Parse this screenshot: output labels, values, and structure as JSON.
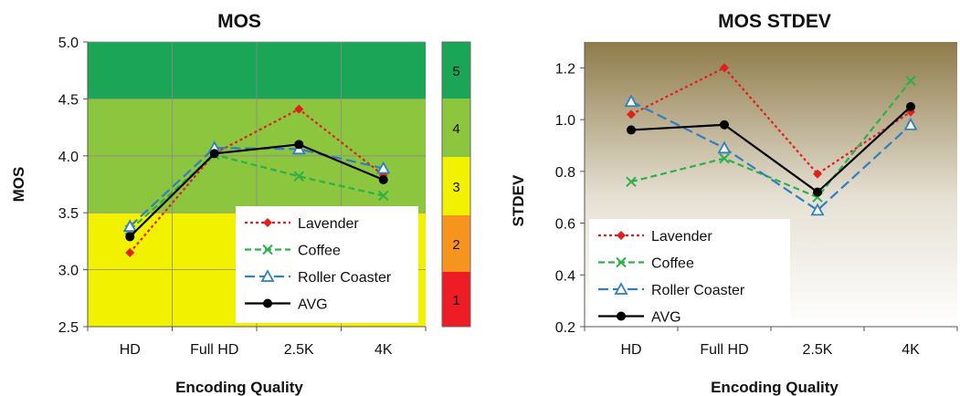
{
  "chart_data": [
    {
      "type": "line",
      "title": "MOS",
      "xlabel": "Encoding Quality",
      "ylabel": "MOS",
      "categories": [
        "HD",
        "Full HD",
        "2.5K",
        "4K"
      ],
      "ylim": [
        2.5,
        5.0
      ],
      "yticks": [
        "2.5",
        "3.0",
        "3.5",
        "4.0",
        "4.5",
        "5.0"
      ],
      "grid": true,
      "legend_position": "bottom-right",
      "background_bands": [
        {
          "from": 2.5,
          "to": 3.5,
          "color": "#f2f200"
        },
        {
          "from": 3.5,
          "to": 4.5,
          "color": "#8cc63f"
        },
        {
          "from": 4.5,
          "to": 5.0,
          "color": "#1aa557"
        }
      ],
      "series": [
        {
          "name": "Lavender",
          "values": [
            3.15,
            4.02,
            4.41,
            3.83
          ],
          "color": "#e0201c",
          "dash": "3,3",
          "marker": "diamond"
        },
        {
          "name": "Coffee",
          "values": [
            3.35,
            4.01,
            3.82,
            3.65
          ],
          "color": "#2bb04a",
          "dash": "7,4",
          "marker": "x"
        },
        {
          "name": "Roller Coaster",
          "values": [
            3.38,
            4.07,
            4.06,
            3.89
          ],
          "color": "#2f7fc1",
          "dash": "11,5",
          "marker": "triangle"
        },
        {
          "name": "AVG",
          "values": [
            3.29,
            4.02,
            4.1,
            3.79
          ],
          "color": "#000000",
          "dash": "",
          "marker": "circle"
        }
      ]
    },
    {
      "type": "line",
      "title": "MOS STDEV",
      "xlabel": "Encoding Quality",
      "ylabel": "STDEV",
      "categories": [
        "HD",
        "Full HD",
        "2.5K",
        "4K"
      ],
      "ylim": [
        0.2,
        1.3
      ],
      "yticks": [
        "0.2",
        "0.4",
        "0.6",
        "0.8",
        "1.0",
        "1.2"
      ],
      "grid": false,
      "legend_position": "bottom-left",
      "background": "gradient olive to white",
      "series": [
        {
          "name": "Lavender",
          "values": [
            1.02,
            1.2,
            0.79,
            1.03
          ],
          "color": "#e0201c",
          "dash": "3,3",
          "marker": "diamond"
        },
        {
          "name": "Coffee",
          "values": [
            0.76,
            0.85,
            0.7,
            1.15
          ],
          "color": "#2bb04a",
          "dash": "7,4",
          "marker": "x"
        },
        {
          "name": "Roller Coaster",
          "values": [
            1.07,
            0.89,
            0.65,
            0.98
          ],
          "color": "#2f7fc1",
          "dash": "11,5",
          "marker": "triangle"
        },
        {
          "name": "AVG",
          "values": [
            0.96,
            0.98,
            0.72,
            1.05
          ],
          "color": "#000000",
          "dash": "",
          "marker": "circle"
        }
      ]
    }
  ],
  "rating_scale": {
    "labels": [
      "5",
      "4",
      "3",
      "2",
      "1"
    ],
    "colors": [
      "#1aa557",
      "#8cc63f",
      "#f2f200",
      "#f7941d",
      "#ee1c25"
    ]
  }
}
